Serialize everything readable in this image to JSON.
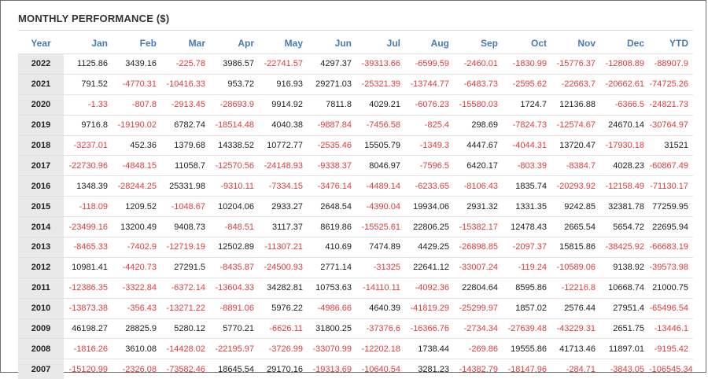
{
  "title": "MONTHLY PERFORMANCE ($)",
  "colors": {
    "header": "#4a7ab5",
    "negative": "#e03c3c",
    "positive": "#222222"
  },
  "table": {
    "columns": [
      "Year",
      "Jan",
      "Feb",
      "Mar",
      "Apr",
      "May",
      "Jun",
      "Jul",
      "Aug",
      "Sep",
      "Oct",
      "Nov",
      "Dec",
      "YTD"
    ],
    "rows": [
      [
        "2022",
        "1125.86",
        "3439.16",
        "-225.78",
        "3986.57",
        "-22741.57",
        "4297.37",
        "-39313.66",
        "-6599.59",
        "-2460.01",
        "-1830.99",
        "-15776.37",
        "-12808.89",
        "-88907.9"
      ],
      [
        "2021",
        "791.52",
        "-4770.31",
        "-10416.33",
        "953.72",
        "916.93",
        "29271.03",
        "-25321.39",
        "-13744.77",
        "-6483.73",
        "-2595.62",
        "-22663.7",
        "-20662.61",
        "-74725.26"
      ],
      [
        "2020",
        "-1.33",
        "-807.8",
        "-2913.45",
        "-28693.9",
        "9914.92",
        "7811.8",
        "4029.21",
        "-6076.23",
        "-15580.03",
        "1724.7",
        "12136.88",
        "-6366.5",
        "-24821.73"
      ],
      [
        "2019",
        "9716.8",
        "-19190.02",
        "6782.74",
        "-18514.48",
        "4040.38",
        "-9887.84",
        "-7456.58",
        "-825.4",
        "298.69",
        "-7824.73",
        "-12574.67",
        "24670.14",
        "-30764.97"
      ],
      [
        "2018",
        "-3237.01",
        "452.36",
        "1379.68",
        "14338.52",
        "10772.77",
        "-2535.46",
        "15505.79",
        "-1349.3",
        "4447.67",
        "-4044.31",
        "13720.47",
        "-17930.18",
        "31521"
      ],
      [
        "2017",
        "-22730.96",
        "-4848.15",
        "11058.7",
        "-12570.56",
        "-24148.93",
        "-9338.37",
        "8046.97",
        "-7596.5",
        "6420.17",
        "-803.39",
        "-8384.7",
        "4028.23",
        "-60867.49"
      ],
      [
        "2016",
        "1348.39",
        "-28244.25",
        "25331.98",
        "-9310.11",
        "-7334.15",
        "-3476.14",
        "-4489.14",
        "-6233.65",
        "-8106.43",
        "1835.74",
        "-20293.92",
        "-12158.49",
        "-71130.17"
      ],
      [
        "2015",
        "-118.09",
        "1209.52",
        "-1048.67",
        "10204.06",
        "2933.27",
        "2648.54",
        "-4390.04",
        "19934.06",
        "2931.32",
        "1331.35",
        "9242.85",
        "32381.78",
        "77259.95"
      ],
      [
        "2014",
        "-23499.16",
        "13200.49",
        "9408.73",
        "-848.51",
        "3117.37",
        "8619.86",
        "-15525.61",
        "22806.25",
        "-15382.17",
        "12478.43",
        "2665.54",
        "5654.72",
        "22695.94"
      ],
      [
        "2013",
        "-8465.33",
        "-7402.9",
        "-12719.19",
        "12502.89",
        "-11307.21",
        "410.69",
        "7474.89",
        "4429.25",
        "-26898.85",
        "-2097.37",
        "15815.86",
        "-38425.92",
        "-66683.19"
      ],
      [
        "2012",
        "10981.41",
        "-4420.73",
        "27291.5",
        "-8435.87",
        "-24500.93",
        "2771.14",
        "-31325",
        "22641.12",
        "-33007.24",
        "-119.24",
        "-10589.06",
        "9138.92",
        "-39573.98"
      ],
      [
        "2011",
        "-12386.35",
        "-3322.84",
        "-6372.14",
        "-13604.33",
        "34282.81",
        "10753.63",
        "-14110.11",
        "-4092.36",
        "22804.64",
        "8595.86",
        "-12216.8",
        "10668.74",
        "21000.75"
      ],
      [
        "2010",
        "-13873.38",
        "-356.43",
        "-13271.22",
        "-8891.06",
        "5976.22",
        "-4986.66",
        "4640.39",
        "-41819.29",
        "-25299.97",
        "1857.02",
        "2576.44",
        "27951.4",
        "-65496.54"
      ],
      [
        "2009",
        "46198.27",
        "28825.9",
        "5280.12",
        "5770.21",
        "-6626.11",
        "31800.25",
        "-37376.6",
        "-16366.76",
        "-2734.34",
        "-27639.48",
        "-43229.31",
        "2651.75",
        "-13446.1"
      ],
      [
        "2008",
        "-1816.26",
        "3610.08",
        "-14428.02",
        "-22195.97",
        "-3726.99",
        "-33070.99",
        "-12202.18",
        "1738.44",
        "-269.86",
        "19555.86",
        "41713.46",
        "11897.01",
        "-9195.42"
      ],
      [
        "2007",
        "-15120.99",
        "-2326.08",
        "-73582.46",
        "18645.54",
        "29170.16",
        "-19313.69",
        "-10640.54",
        "3281.23",
        "-14382.79",
        "-18147.96",
        "-284.71",
        "-3843.05",
        "-106545.34"
      ]
    ]
  }
}
